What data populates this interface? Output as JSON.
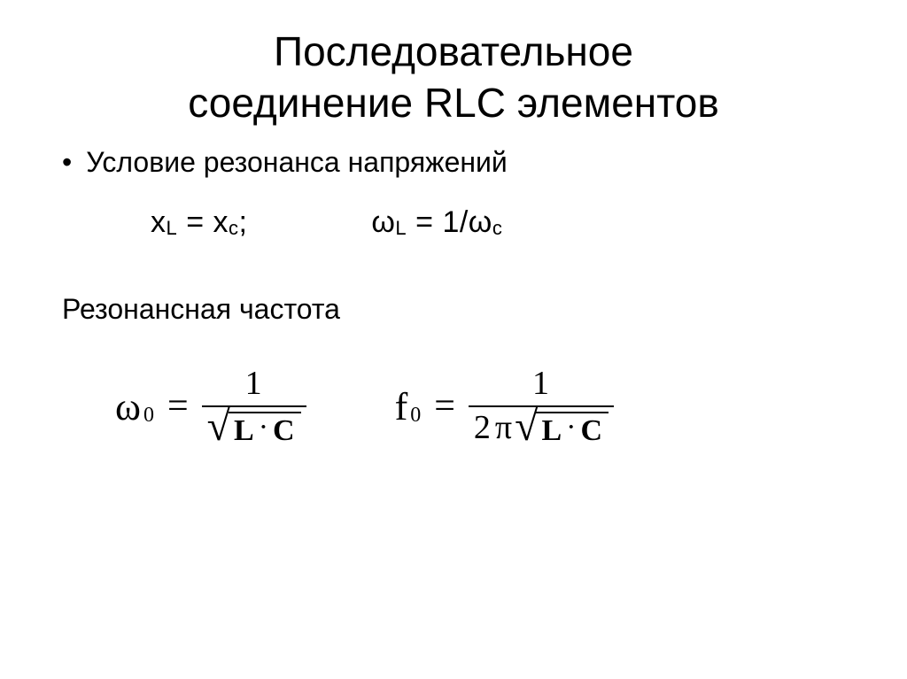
{
  "title_line1": "Последовательное",
  "title_line2": "соединение RLC элементов",
  "bullet_text": "Условие резонанса напряжений",
  "condition": {
    "x_var": "x",
    "sub_L": "L",
    "sub_c": "с",
    "eq": "=",
    "semicolon": ";",
    "omega": "ω",
    "one_over": "1/"
  },
  "subheading": "Резонансная частота",
  "formula1": {
    "omega": "ω",
    "sub": "0",
    "eq": "=",
    "num": "1",
    "L": "L",
    "C": "C",
    "dot": "·"
  },
  "formula2": {
    "f": "f",
    "sub": "0",
    "eq": "=",
    "num": "1",
    "two": "2",
    "pi": "π",
    "L": "L",
    "C": "C",
    "dot": "·"
  },
  "styling": {
    "bg": "#ffffff",
    "text": "#000000",
    "title_fontsize": 46,
    "body_fontsize": 32,
    "formula_fontsize": 42
  }
}
